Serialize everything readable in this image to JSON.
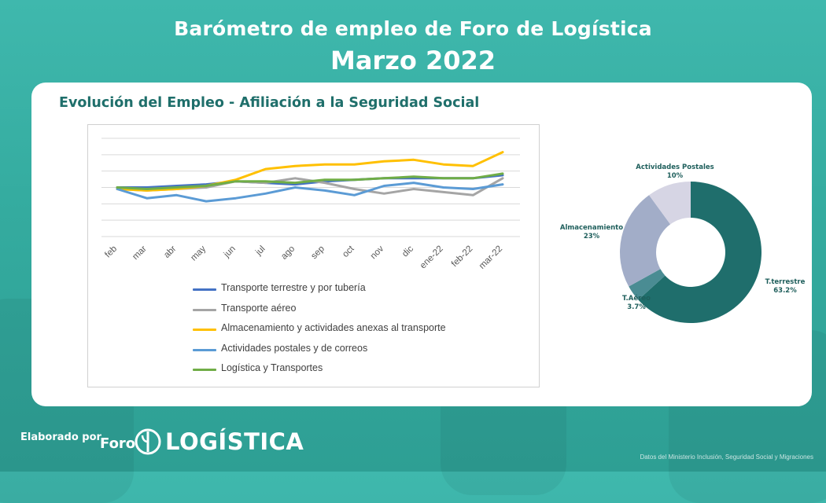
{
  "header": {
    "title": "Barómetro de empleo de Foro de Logística",
    "subtitle": "Marzo 2022"
  },
  "card": {
    "title": "Evolución del Empleo - Afiliación a la Seguridad Social"
  },
  "footer": {
    "made_by": "Elaborado por",
    "logo_prefix": "Foro",
    "logo_word": "LOGÍSTICA",
    "source": "Datos del Ministerio Inclusión, Seguridad Social y Migraciones"
  },
  "chart_data": [
    {
      "type": "line",
      "title": "",
      "xlabel": "",
      "ylabel": "",
      "grid": true,
      "legend": "bottom",
      "ylim": [
        84,
        116
      ],
      "categories": [
        "feb",
        "mar",
        "abr",
        "may",
        "jun",
        "jul",
        "ago",
        "sep",
        "oct",
        "nov",
        "dic",
        "ene-22",
        "feb-22",
        "mar-22"
      ],
      "series": [
        {
          "name": "Transporte terrestre y por tubería",
          "color": "#4472c4",
          "values": [
            100,
            100,
            100.5,
            101,
            102,
            101.5,
            101,
            102,
            102.5,
            103,
            103,
            103,
            103,
            104
          ]
        },
        {
          "name": "Transporte aéreo",
          "color": "#a5a5a5",
          "values": [
            99.5,
            99,
            99.5,
            100,
            102,
            101.5,
            103,
            101.5,
            99.5,
            98,
            99.5,
            98.5,
            97.5,
            103
          ]
        },
        {
          "name": "Almacenamiento y actividades anexas al transporte",
          "color": "#ffc000",
          "values": [
            99.5,
            99,
            99.5,
            100.5,
            102.5,
            106,
            107,
            107.5,
            107.5,
            108.5,
            109,
            107.5,
            107,
            111.5
          ]
        },
        {
          "name": "Actividades postales y de correos",
          "color": "#5b9bd5",
          "values": [
            99.5,
            96.5,
            97.5,
            95.5,
            96.5,
            98,
            100,
            99,
            97.5,
            100.5,
            101.5,
            100,
            99.5,
            101
          ]
        },
        {
          "name": "Logística y Transportes",
          "color": "#70ad47",
          "values": [
            100,
            99.5,
            100,
            100.5,
            102,
            102,
            101.5,
            102.5,
            102.5,
            103,
            103.5,
            103,
            103,
            104.5
          ]
        }
      ]
    },
    {
      "type": "pie",
      "title": "",
      "donut": true,
      "labels": [
        "T.terrestre",
        "T.Aéreo",
        "Almacenamiento",
        "Actividades Postales"
      ],
      "values": [
        63.2,
        3.7,
        23,
        10
      ],
      "value_labels": [
        "63.2%",
        "3.7%",
        "23%",
        "10%"
      ],
      "colors": [
        "#1f6e6c",
        "#4a8c93",
        "#a2adc8",
        "#d6d5e4"
      ]
    }
  ]
}
